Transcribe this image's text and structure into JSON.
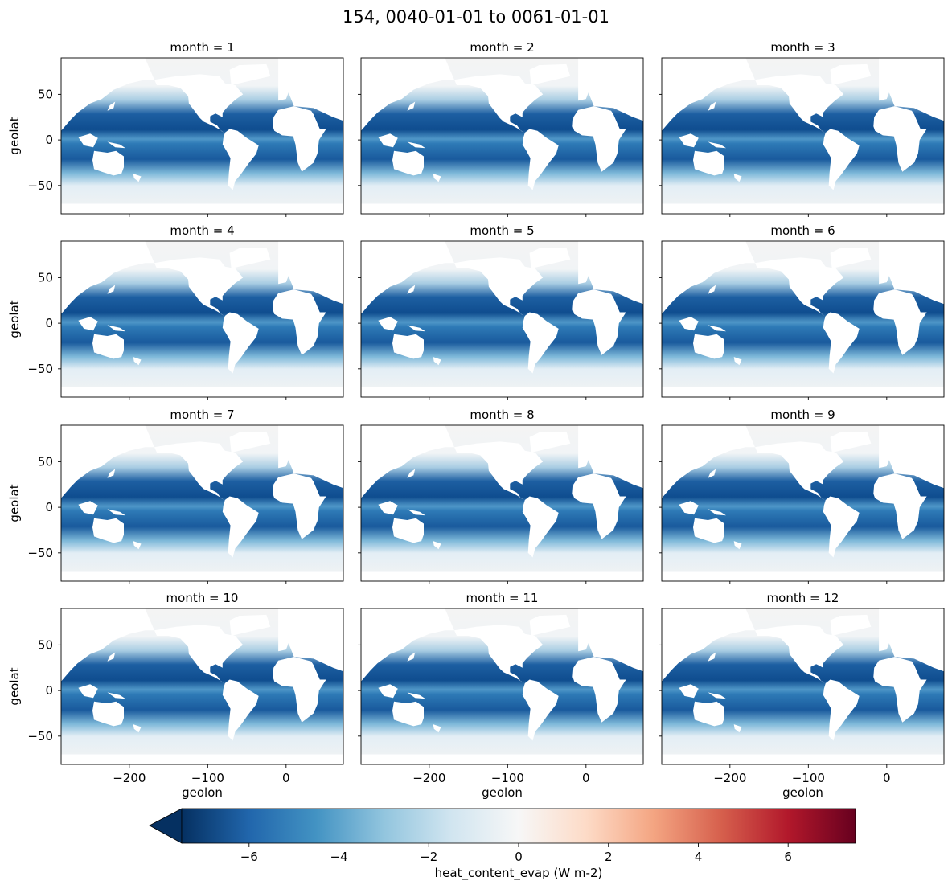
{
  "figure": {
    "title": "154, 0040-01-01 to 0061-01-01"
  },
  "chart_data": {
    "type": "heatmap",
    "panel_titles": [
      "month = 1",
      "month = 2",
      "month = 3",
      "month = 4",
      "month = 5",
      "month = 6",
      "month = 7",
      "month = 8",
      "month = 9",
      "month = 10",
      "month = 11",
      "month = 12"
    ],
    "xlabel": "geolon",
    "ylabel": "geolat",
    "xlim": [
      -287,
      73
    ],
    "ylim": [
      -81,
      90
    ],
    "xticks": [
      -200,
      -100,
      0
    ],
    "xtick_labels": [
      "−200",
      "−100",
      "0"
    ],
    "yticks": [
      -50,
      0,
      50
    ],
    "ytick_labels": [
      "−50",
      "0",
      "50"
    ],
    "colorbar": {
      "label": "heat_content_evap (W m-2)",
      "colormap": "RdBu_r",
      "range": [
        -7.5,
        7.5
      ],
      "extend": "min",
      "ticks": [
        -6,
        -4,
        -2,
        0,
        2,
        4,
        6
      ],
      "tick_labels": [
        "−6",
        "−4",
        "−2",
        "0",
        "2",
        "4",
        "6"
      ],
      "colors": [
        "#053061",
        "#2166ac",
        "#4393c3",
        "#92c5de",
        "#d1e5f0",
        "#f7f7f7",
        "#fddbc7",
        "#f4a582",
        "#d6604d",
        "#b2182b",
        "#67001f"
      ]
    },
    "land_color": "#ffffff",
    "ice_color": "#f4f4f4"
  }
}
